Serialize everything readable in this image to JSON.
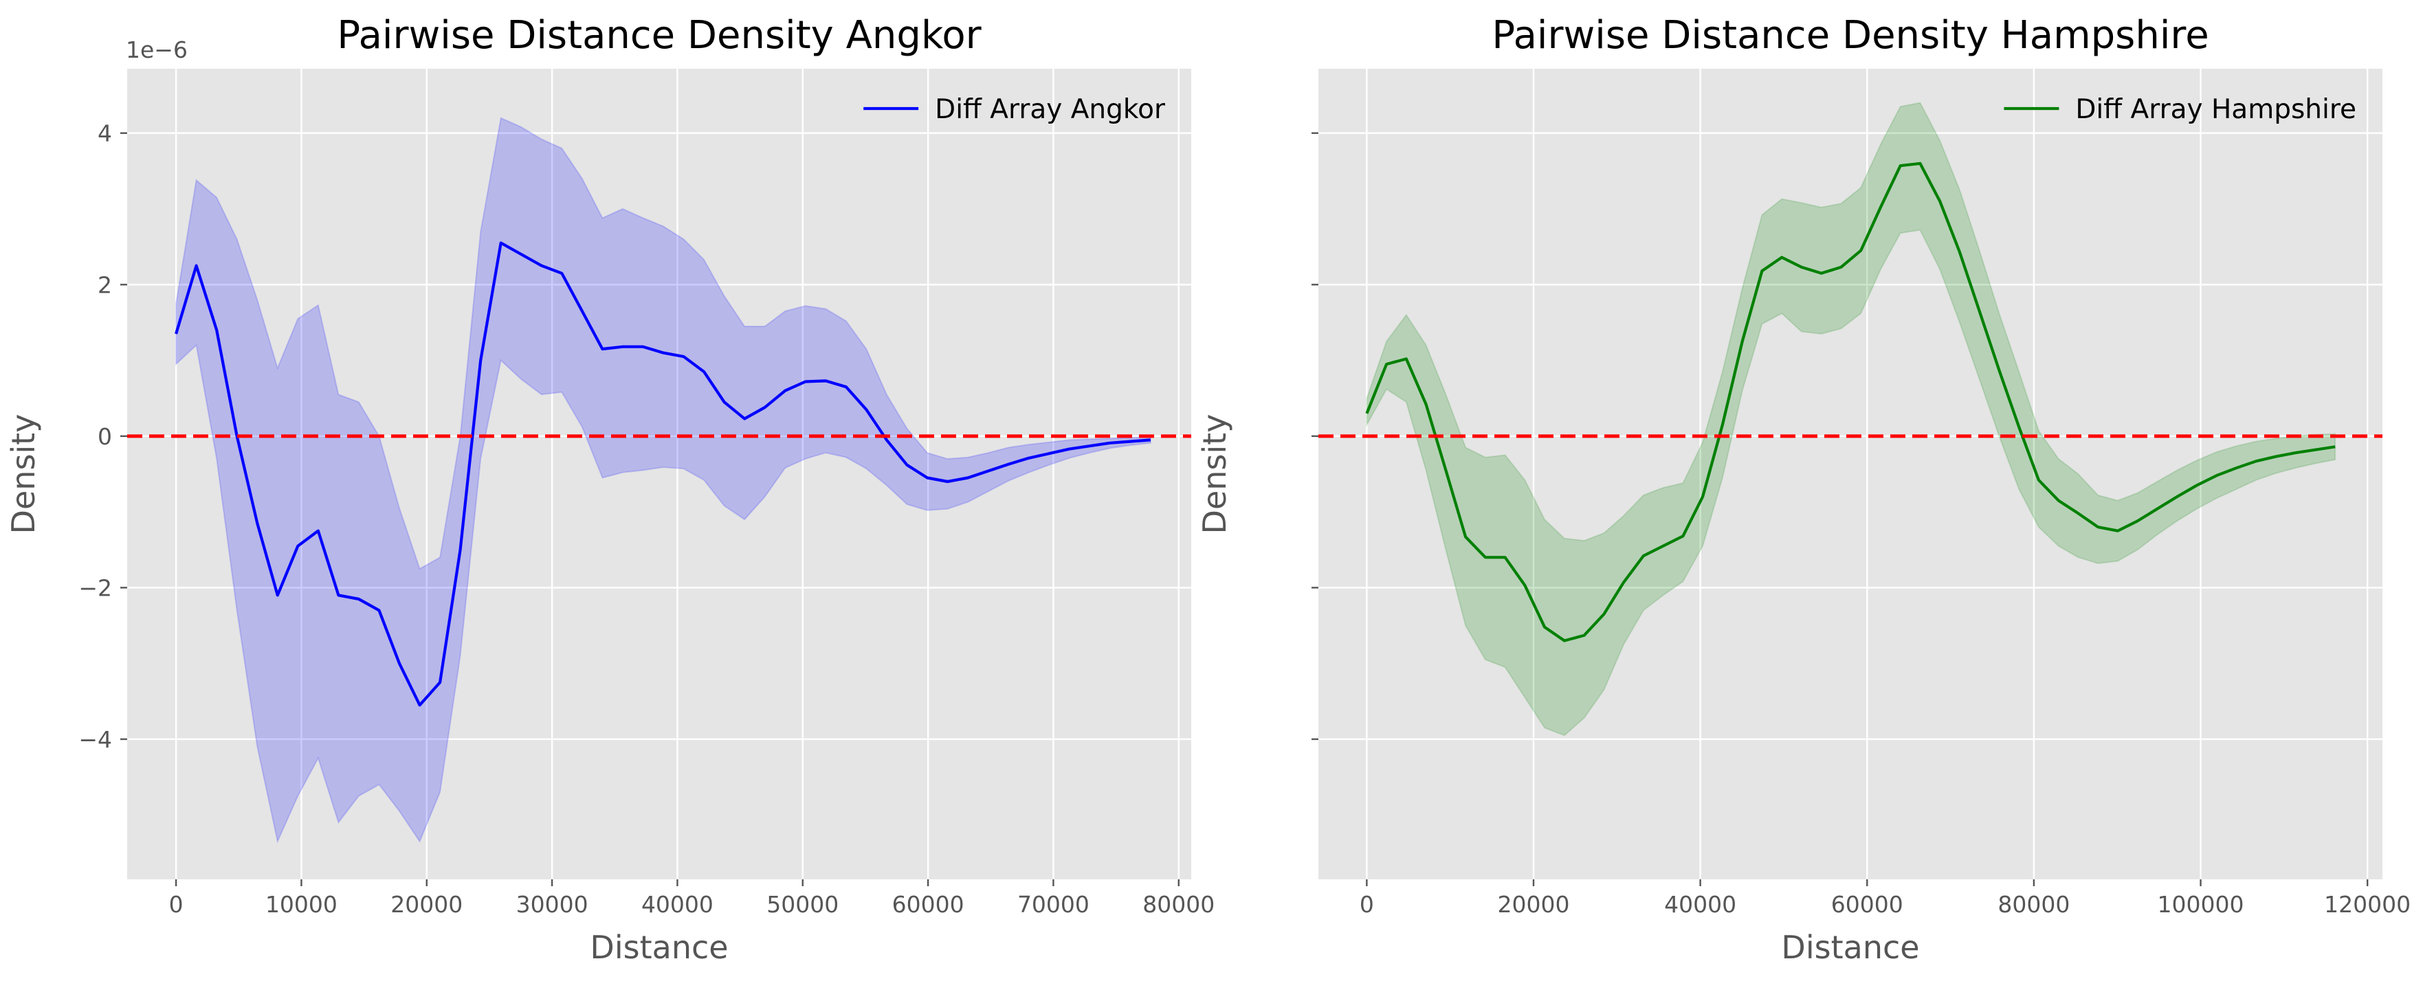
{
  "chart_data": [
    {
      "type": "line",
      "title": "Pairwise Distance Density Angkor",
      "xlabel": "Distance",
      "ylabel": "Density",
      "y_offset_label": "1e−6",
      "y_scale": 1e-06,
      "xlim": [
        -3900,
        81000
      ],
      "ylim": [
        -5.85,
        4.85
      ],
      "xticks": [
        0,
        10000,
        20000,
        30000,
        40000,
        50000,
        60000,
        70000,
        80000
      ],
      "xtick_labels": [
        "0",
        "10000",
        "20000",
        "30000",
        "40000",
        "50000",
        "60000",
        "70000",
        "80000"
      ],
      "yticks": [
        -4,
        -2,
        0,
        2,
        4
      ],
      "ytick_labels": [
        "−4",
        "−2",
        "0",
        "2",
        "4"
      ],
      "show_ytick_labels": true,
      "grid": true,
      "legend": "top-right",
      "reference_line": {
        "y": 0,
        "color": "#ff0000",
        "style": "dashed"
      },
      "series": [
        {
          "name": "Diff Array Angkor",
          "color": "#0000ff",
          "band_color": "#0000ff",
          "x": [
            0,
            1620,
            3240,
            4860,
            6480,
            8100,
            9720,
            11340,
            12960,
            14580,
            16200,
            17820,
            19440,
            21060,
            22680,
            24300,
            25920,
            27540,
            29160,
            30780,
            32400,
            34020,
            35640,
            37260,
            38880,
            40500,
            42120,
            43740,
            45360,
            46980,
            48600,
            50220,
            51840,
            53460,
            55080,
            56700,
            58320,
            59940,
            61560,
            63180,
            64800,
            66420,
            68040,
            69660,
            71280,
            72900,
            74520,
            76140,
            77760
          ],
          "y": [
            1.35,
            2.25,
            1.4,
            0.0,
            -1.15,
            -2.1,
            -1.45,
            -1.25,
            -2.1,
            -2.15,
            -2.3,
            -3.0,
            -3.55,
            -3.25,
            -1.5,
            1.0,
            2.55,
            2.4,
            2.25,
            2.15,
            1.65,
            1.15,
            1.18,
            1.18,
            1.1,
            1.05,
            0.85,
            0.45,
            0.23,
            0.38,
            0.6,
            0.72,
            0.73,
            0.65,
            0.35,
            -0.05,
            -0.38,
            -0.55,
            -0.6,
            -0.55,
            -0.46,
            -0.37,
            -0.29,
            -0.23,
            -0.17,
            -0.13,
            -0.09,
            -0.07,
            -0.05
          ],
          "lower": [
            0.95,
            1.2,
            -0.3,
            -2.3,
            -4.1,
            -5.35,
            -4.75,
            -4.25,
            -5.1,
            -4.75,
            -4.6,
            -4.95,
            -5.35,
            -4.7,
            -2.9,
            -0.3,
            1.0,
            0.75,
            0.55,
            0.58,
            0.12,
            -0.55,
            -0.48,
            -0.45,
            -0.41,
            -0.43,
            -0.58,
            -0.92,
            -1.1,
            -0.8,
            -0.42,
            -0.3,
            -0.22,
            -0.28,
            -0.43,
            -0.65,
            -0.9,
            -0.98,
            -0.96,
            -0.87,
            -0.73,
            -0.59,
            -0.48,
            -0.38,
            -0.29,
            -0.22,
            -0.16,
            -0.12,
            -0.09
          ],
          "upper": [
            1.75,
            3.38,
            3.15,
            2.6,
            1.8,
            0.9,
            1.55,
            1.73,
            0.55,
            0.45,
            0.0,
            -0.95,
            -1.75,
            -1.6,
            0.0,
            2.7,
            4.2,
            4.08,
            3.92,
            3.8,
            3.4,
            2.88,
            3.0,
            2.88,
            2.77,
            2.6,
            2.33,
            1.85,
            1.45,
            1.45,
            1.65,
            1.72,
            1.68,
            1.52,
            1.15,
            0.55,
            0.1,
            -0.22,
            -0.3,
            -0.28,
            -0.22,
            -0.15,
            -0.11,
            -0.08,
            -0.05,
            -0.04,
            -0.03,
            -0.02,
            -0.01
          ]
        }
      ]
    },
    {
      "type": "line",
      "title": "Pairwise Distance Density Hampshire",
      "xlabel": "Distance",
      "ylabel": "Density",
      "y_offset_label": "",
      "y_scale": 1e-06,
      "xlim": [
        -5800,
        121800
      ],
      "ylim": [
        -5.85,
        4.85
      ],
      "xticks": [
        0,
        20000,
        40000,
        60000,
        80000,
        100000,
        120000
      ],
      "xtick_labels": [
        "0",
        "20000",
        "40000",
        "60000",
        "80000",
        "100000",
        "120000"
      ],
      "yticks": [
        -4,
        -2,
        0,
        2,
        4
      ],
      "ytick_labels": [
        "",
        "",
        "",
        "",
        ""
      ],
      "show_ytick_labels": false,
      "grid": true,
      "legend": "top-right",
      "reference_line": {
        "y": 0,
        "color": "#ff0000",
        "style": "dashed"
      },
      "series": [
        {
          "name": "Diff Array Hampshire",
          "color": "#008000",
          "band_color": "#008000",
          "x": [
            0,
            2370,
            4740,
            7110,
            9480,
            11850,
            14220,
            16590,
            18960,
            21330,
            23700,
            26070,
            28440,
            30810,
            33180,
            35550,
            37920,
            40290,
            42660,
            45030,
            47400,
            49770,
            52140,
            54510,
            56880,
            59250,
            61620,
            63990,
            66360,
            68730,
            71100,
            73470,
            75840,
            78210,
            80580,
            82950,
            85320,
            87690,
            90060,
            92430,
            94800,
            97170,
            99540,
            101910,
            104280,
            106650,
            109020,
            111390,
            113760,
            116130
          ],
          "y": [
            0.3,
            0.95,
            1.02,
            0.42,
            -0.45,
            -1.33,
            -1.6,
            -1.6,
            -1.97,
            -2.52,
            -2.7,
            -2.63,
            -2.35,
            -1.93,
            -1.58,
            -1.45,
            -1.32,
            -0.8,
            0.15,
            1.25,
            2.18,
            2.36,
            2.23,
            2.15,
            2.23,
            2.45,
            3.02,
            3.57,
            3.6,
            3.1,
            2.43,
            1.65,
            0.87,
            0.12,
            -0.58,
            -0.85,
            -1.02,
            -1.2,
            -1.25,
            -1.12,
            -0.96,
            -0.8,
            -0.65,
            -0.52,
            -0.42,
            -0.33,
            -0.27,
            -0.22,
            -0.18,
            -0.14
          ],
          "lower": [
            0.15,
            0.62,
            0.45,
            -0.45,
            -1.5,
            -2.5,
            -2.95,
            -3.05,
            -3.45,
            -3.85,
            -3.95,
            -3.72,
            -3.35,
            -2.75,
            -2.3,
            -2.1,
            -1.92,
            -1.45,
            -0.55,
            0.6,
            1.48,
            1.62,
            1.38,
            1.35,
            1.42,
            1.62,
            2.2,
            2.68,
            2.72,
            2.2,
            1.5,
            0.75,
            0.0,
            -0.7,
            -1.2,
            -1.45,
            -1.6,
            -1.68,
            -1.65,
            -1.5,
            -1.3,
            -1.12,
            -0.96,
            -0.82,
            -0.7,
            -0.58,
            -0.49,
            -0.42,
            -0.36,
            -0.31
          ],
          "upper": [
            0.5,
            1.25,
            1.6,
            1.2,
            0.55,
            -0.15,
            -0.28,
            -0.25,
            -0.58,
            -1.1,
            -1.35,
            -1.38,
            -1.28,
            -1.05,
            -0.78,
            -0.68,
            -0.62,
            -0.08,
            0.85,
            1.95,
            2.92,
            3.13,
            3.08,
            3.02,
            3.07,
            3.28,
            3.85,
            4.35,
            4.4,
            3.9,
            3.25,
            2.45,
            1.62,
            0.85,
            0.07,
            -0.3,
            -0.5,
            -0.78,
            -0.85,
            -0.75,
            -0.6,
            -0.45,
            -0.32,
            -0.21,
            -0.13,
            -0.07,
            -0.03,
            0.0,
            0.02,
            0.03
          ]
        }
      ]
    }
  ],
  "colors": {
    "axes_bg": "#e5e5e5",
    "grid": "#ffffff",
    "tick_text": "#555555",
    "legend_bg": "#e5e5e5"
  }
}
